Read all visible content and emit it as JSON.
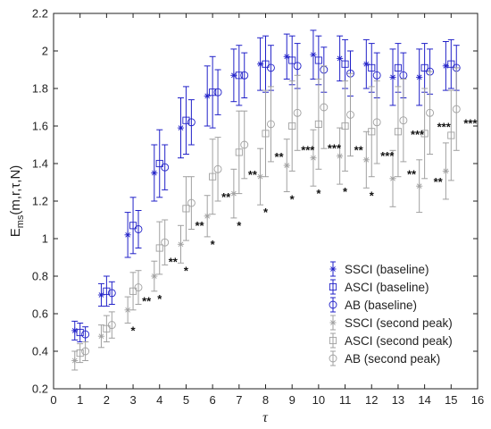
{
  "chart_data": {
    "type": "scatter",
    "xlabel": "τ",
    "ylabel_main": "E",
    "ylabel_sub": "ms",
    "ylabel_rest": "(m,r,τ,N)",
    "xlim": [
      0,
      16
    ],
    "ylim": [
      0.2,
      2.2
    ],
    "xticks": [
      "0",
      "1",
      "2",
      "3",
      "4",
      "5",
      "6",
      "7",
      "8",
      "9",
      "10",
      "11",
      "12",
      "13",
      "14",
      "15",
      "16"
    ],
    "yticks": [
      "0.2",
      "0.4",
      "0.6",
      "0.8",
      "1",
      "1.2",
      "1.4",
      "1.6",
      "1.8",
      "2",
      "2.2"
    ],
    "legend_position": "bottom-right",
    "colors": {
      "baseline": "#2020c8",
      "second_peak": "#a0a0a0"
    },
    "series": [
      {
        "name": "SSCI (baseline)",
        "marker": "asterisk",
        "group": "baseline",
        "offset": -0.2,
        "x": [
          1,
          2,
          3,
          4,
          5,
          6,
          7,
          8,
          9,
          10,
          11,
          12,
          13,
          14,
          15
        ],
        "y": [
          0.51,
          0.7,
          1.02,
          1.35,
          1.59,
          1.76,
          1.87,
          1.93,
          1.97,
          1.98,
          1.96,
          1.93,
          1.86,
          1.86,
          1.92
        ],
        "err": [
          0.05,
          0.06,
          0.12,
          0.15,
          0.16,
          0.16,
          0.14,
          0.14,
          0.12,
          0.13,
          0.12,
          0.13,
          0.15,
          0.15,
          0.13
        ]
      },
      {
        "name": "ASCI (baseline)",
        "marker": "square",
        "group": "baseline",
        "offset": 0,
        "x": [
          1,
          2,
          3,
          4,
          5,
          6,
          7,
          8,
          9,
          10,
          11,
          12,
          13,
          14,
          15
        ],
        "y": [
          0.5,
          0.72,
          1.07,
          1.4,
          1.63,
          1.78,
          1.87,
          1.93,
          1.95,
          1.95,
          1.93,
          1.91,
          1.91,
          1.91,
          1.93
        ],
        "err": [
          0.05,
          0.08,
          0.15,
          0.18,
          0.18,
          0.19,
          0.16,
          0.15,
          0.13,
          0.13,
          0.13,
          0.13,
          0.13,
          0.13,
          0.13
        ]
      },
      {
        "name": "AB (baseline)",
        "marker": "circle",
        "group": "baseline",
        "offset": 0.2,
        "x": [
          1,
          2,
          3,
          4,
          5,
          6,
          7,
          8,
          9,
          10,
          11,
          12,
          13,
          14,
          15
        ],
        "y": [
          0.49,
          0.71,
          1.05,
          1.38,
          1.62,
          1.78,
          1.87,
          1.91,
          1.92,
          1.9,
          1.88,
          1.87,
          1.87,
          1.89,
          1.91
        ],
        "err": [
          0.04,
          0.06,
          0.1,
          0.12,
          0.12,
          0.12,
          0.12,
          0.12,
          0.12,
          0.12,
          0.12,
          0.12,
          0.12,
          0.12,
          0.12
        ]
      },
      {
        "name": "SSCI (second peak)",
        "marker": "asterisk",
        "group": "second_peak",
        "offset": -0.2,
        "x": [
          1,
          2,
          3,
          4,
          5,
          6,
          7,
          8,
          9,
          10,
          11,
          12,
          13,
          14,
          15
        ],
        "y": [
          0.35,
          0.48,
          0.62,
          0.8,
          0.97,
          1.12,
          1.24,
          1.33,
          1.39,
          1.43,
          1.44,
          1.42,
          1.32,
          1.28,
          1.36
        ],
        "err": [
          0.05,
          0.06,
          0.07,
          0.08,
          0.1,
          0.11,
          0.13,
          0.15,
          0.14,
          0.15,
          0.15,
          0.15,
          0.15,
          0.14,
          0.15
        ]
      },
      {
        "name": "ASCI (second peak)",
        "marker": "square",
        "group": "second_peak",
        "offset": 0,
        "x": [
          1,
          2,
          3,
          4,
          5,
          6,
          7,
          8,
          9,
          10,
          11,
          12,
          13,
          14,
          15
        ],
        "y": [
          0.39,
          0.52,
          0.72,
          0.95,
          1.16,
          1.33,
          1.46,
          1.56,
          1.6,
          1.61,
          1.6,
          1.57,
          1.57,
          1.56,
          1.55
        ],
        "err": [
          0.05,
          0.07,
          0.1,
          0.14,
          0.17,
          0.2,
          0.22,
          0.23,
          0.24,
          0.24,
          0.24,
          0.24,
          0.24,
          0.24,
          0.24
        ]
      },
      {
        "name": "AB (second peak)",
        "marker": "circle",
        "group": "second_peak",
        "offset": 0.2,
        "x": [
          1,
          2,
          3,
          4,
          5,
          6,
          7,
          8,
          9,
          10,
          11,
          12,
          13,
          14,
          15
        ],
        "y": [
          0.4,
          0.54,
          0.74,
          0.98,
          1.19,
          1.37,
          1.5,
          1.61,
          1.67,
          1.7,
          1.66,
          1.62,
          1.63,
          1.67,
          1.69
        ],
        "err": [
          0.05,
          0.07,
          0.09,
          0.12,
          0.14,
          0.17,
          0.18,
          0.2,
          0.2,
          0.22,
          0.22,
          0.22,
          0.22,
          0.22,
          0.22
        ]
      }
    ],
    "annotations": [
      {
        "x": 3,
        "single": "*",
        "double": "**"
      },
      {
        "x": 4,
        "single": "*",
        "double": "**"
      },
      {
        "x": 5,
        "single": "*",
        "double": "**"
      },
      {
        "x": 6,
        "single": "*",
        "double": "**"
      },
      {
        "x": 7,
        "single": "*",
        "double": "**"
      },
      {
        "x": 8,
        "single": "*",
        "double": "**"
      },
      {
        "x": 9,
        "single": "*",
        "double": "***"
      },
      {
        "x": 10,
        "single": "*",
        "double": "***"
      },
      {
        "x": 11,
        "single": "*",
        "double": "**"
      },
      {
        "x": 12,
        "single": "*",
        "double": "***"
      },
      {
        "x": 13,
        "single": "",
        "double": "**",
        "triple": "***"
      },
      {
        "x": 14,
        "single": "",
        "double": "**",
        "triple": "***"
      },
      {
        "x": 15,
        "single": "",
        "double": "",
        "triple": "***"
      }
    ]
  }
}
